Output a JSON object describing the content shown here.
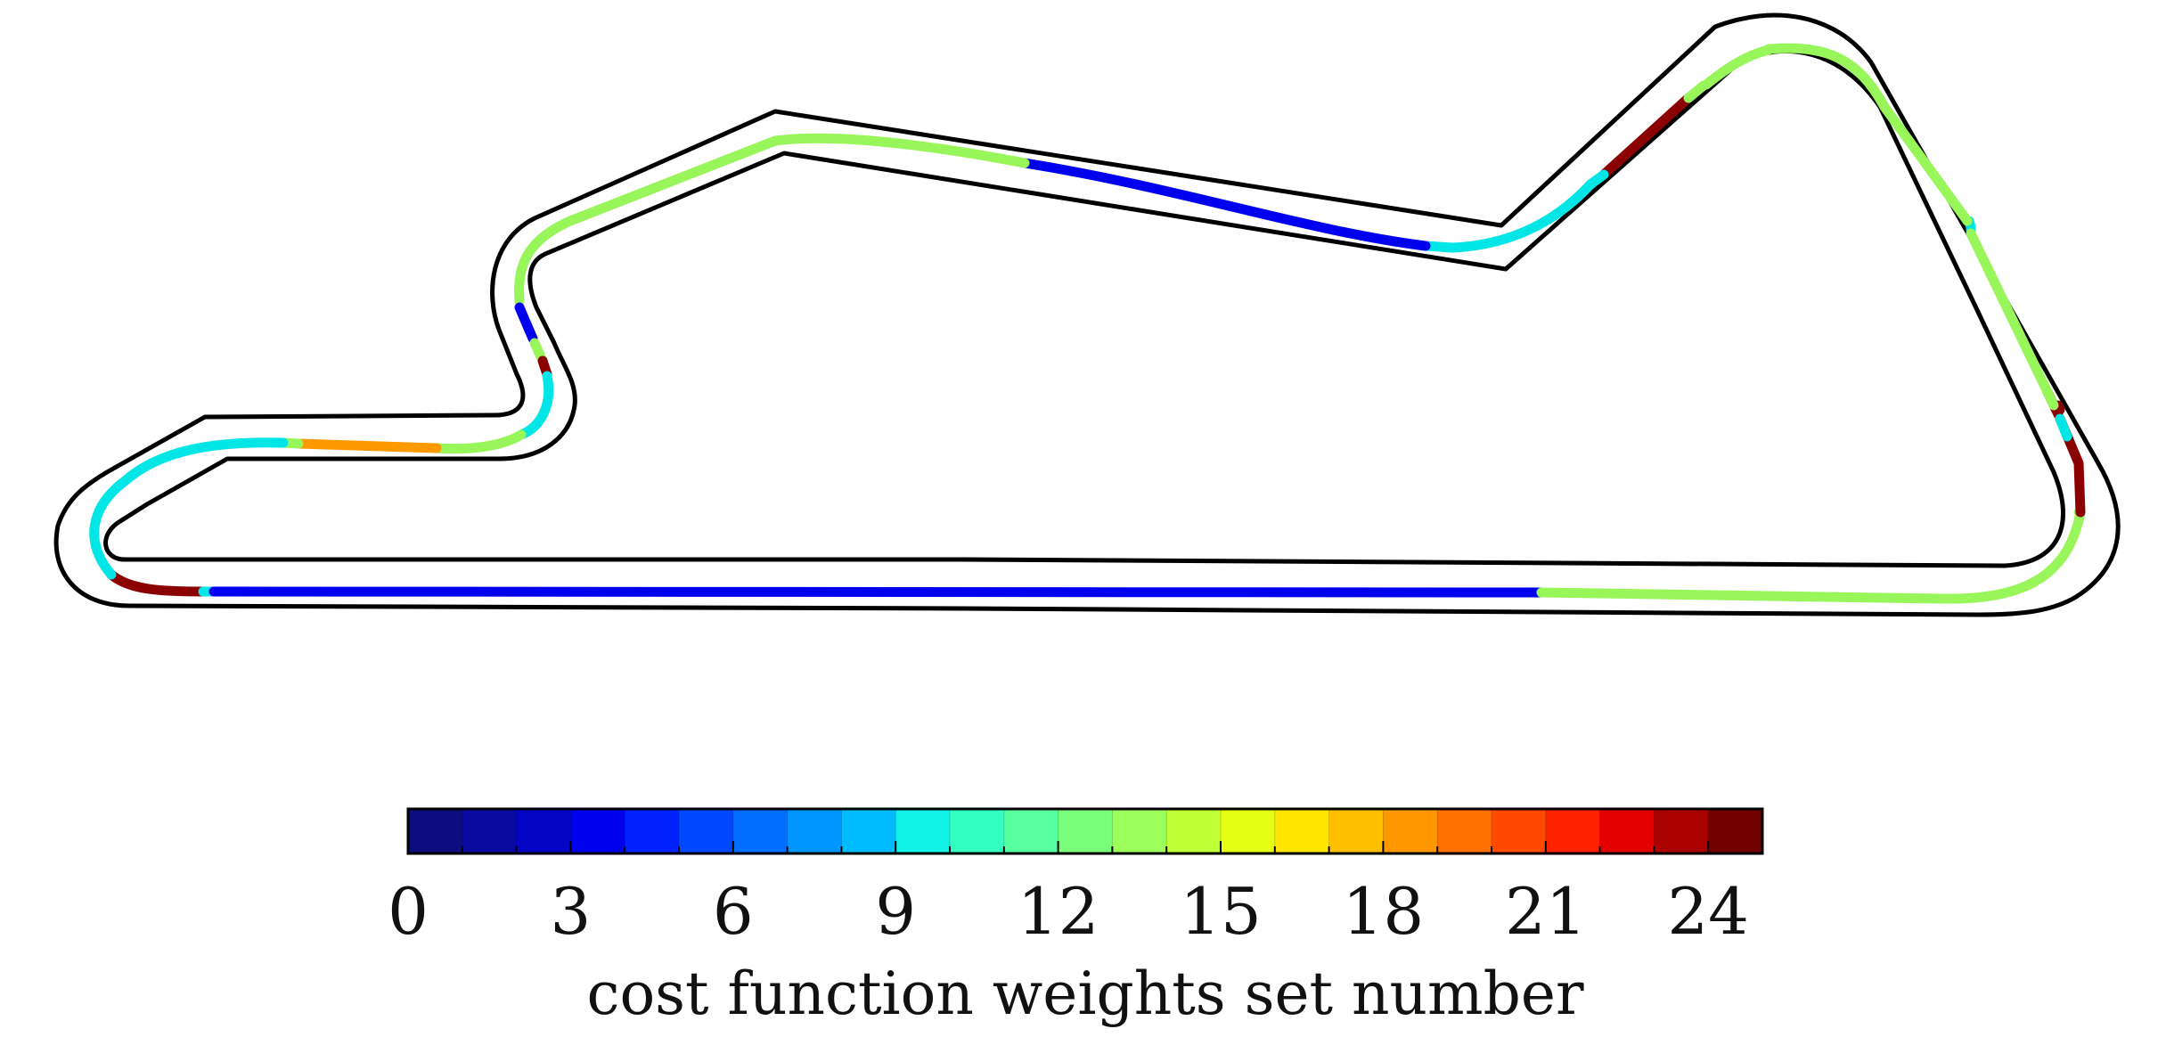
{
  "colorbar": {
    "label": "cost function weights set number",
    "min": 0,
    "max": 25,
    "ticks": [
      0,
      3,
      6,
      9,
      12,
      15,
      18,
      21,
      24
    ],
    "colors": [
      "#0d0d80",
      "#0a0aa2",
      "#0505c6",
      "#0000ee",
      "#0022ff",
      "#0048ff",
      "#006eff",
      "#0096ff",
      "#00bcff",
      "#12f2e6",
      "#34ffc3",
      "#56ff9f",
      "#7aff7c",
      "#9dff5a",
      "#c1ff36",
      "#e4ff13",
      "#ffe600",
      "#ffbf00",
      "#ff9800",
      "#ff7000",
      "#ff4a00",
      "#ff2200",
      "#e50000",
      "#aa0000",
      "#720000"
    ]
  },
  "track": {
    "segments": [
      {
        "value": 24,
        "color": "#8b0000"
      },
      {
        "value": 9,
        "color": "#00e5e5"
      },
      {
        "value": 3,
        "color": "#0000ee"
      },
      {
        "value": 13,
        "color": "#98f55a"
      },
      {
        "value": 9,
        "color": "#00e5e5"
      },
      {
        "value": 3,
        "color": "#0000ee"
      },
      {
        "value": 9,
        "color": "#00e5e5"
      },
      {
        "value": 13,
        "color": "#98f55a"
      },
      {
        "value": 24,
        "color": "#8b0000"
      },
      {
        "value": 13,
        "color": "#98f55a"
      },
      {
        "value": 9,
        "color": "#00e5e5"
      },
      {
        "value": 3,
        "color": "#0000ee"
      },
      {
        "value": 9,
        "color": "#00e5e5"
      },
      {
        "value": 13,
        "color": "#98f55a"
      },
      {
        "value": 3,
        "color": "#0000ee"
      },
      {
        "value": 13,
        "color": "#98f55a"
      },
      {
        "value": 24,
        "color": "#8b0000"
      },
      {
        "value": 9,
        "color": "#00e5e5"
      },
      {
        "value": 18,
        "color": "#ff9900"
      },
      {
        "value": 13,
        "color": "#98f55a"
      },
      {
        "value": 18,
        "color": "#ff9900"
      },
      {
        "value": 3,
        "color": "#0000ee"
      },
      {
        "value": 9,
        "color": "#00e5e5"
      },
      {
        "value": 13,
        "color": "#98f55a"
      }
    ]
  }
}
